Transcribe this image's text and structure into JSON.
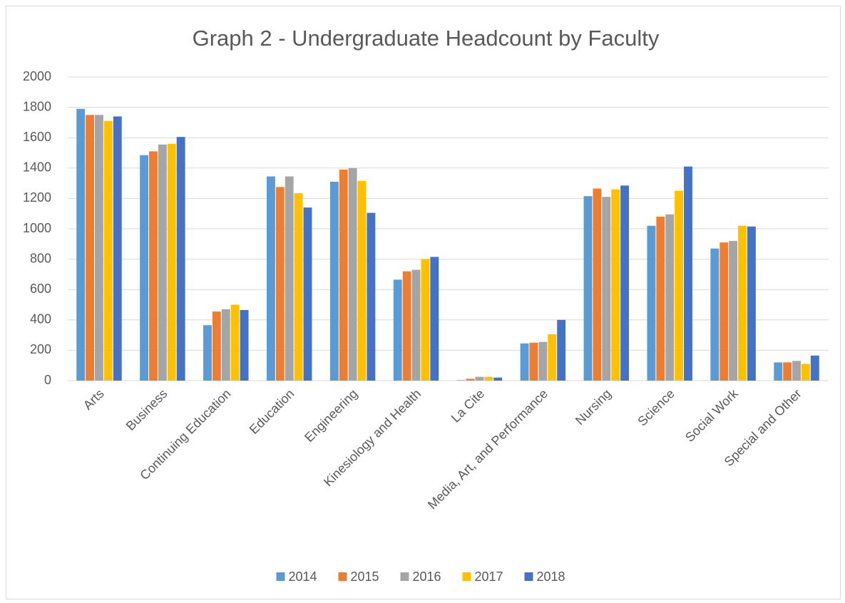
{
  "chart_data": {
    "type": "bar",
    "title": "Graph 2 - Undergraduate Headcount by Faculty",
    "categories": [
      "Arts",
      "Business",
      "Continuing Education",
      "Education",
      "Engineering",
      "Kinesiology and Health",
      "La Cite",
      "Media, Art, and Performance",
      "Nursing",
      "Science",
      "Social Work",
      "Special and Other"
    ],
    "series": [
      {
        "name": "2014",
        "color": "#5b9bd5",
        "values": [
          1790,
          1485,
          365,
          1345,
          1310,
          665,
          3,
          245,
          1215,
          1020,
          870,
          120
        ]
      },
      {
        "name": "2015",
        "color": "#ed7d31",
        "values": [
          1750,
          1510,
          455,
          1275,
          1390,
          720,
          12,
          250,
          1265,
          1080,
          910,
          120
        ]
      },
      {
        "name": "2016",
        "color": "#a5a5a5",
        "values": [
          1750,
          1555,
          470,
          1345,
          1400,
          730,
          25,
          255,
          1210,
          1095,
          920,
          130
        ]
      },
      {
        "name": "2017",
        "color": "#ffc000",
        "values": [
          1710,
          1560,
          500,
          1235,
          1315,
          800,
          25,
          305,
          1260,
          1250,
          1020,
          110
        ]
      },
      {
        "name": "2018",
        "color": "#4472c4",
        "values": [
          1740,
          1605,
          465,
          1140,
          1105,
          815,
          20,
          400,
          1285,
          1410,
          1015,
          165
        ]
      }
    ],
    "ylim": [
      0,
      2000
    ],
    "yticks": [
      0,
      200,
      400,
      600,
      800,
      1000,
      1200,
      1400,
      1600,
      1800,
      2000
    ],
    "grid": true,
    "legend": "bottom"
  }
}
